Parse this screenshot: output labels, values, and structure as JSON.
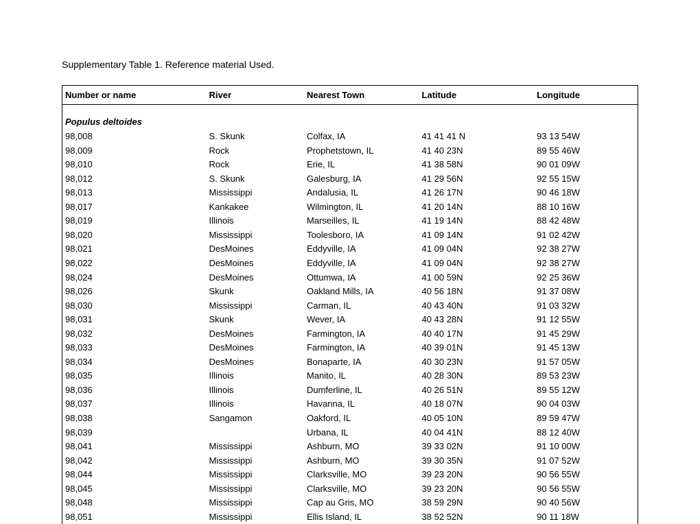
{
  "title": "Supplementary Table 1. Reference material Used.",
  "columns": [
    "Number or name",
    "River",
    "Nearest Town",
    "Latitude",
    "Longitude"
  ],
  "species": "Populus deltoides",
  "rows": [
    [
      "98,008",
      "S. Skunk",
      "Colfax, IA",
      "41 41 41 N",
      "93 13 54W"
    ],
    [
      "98,009",
      "Rock",
      "Prophetstown, IL",
      "41 40 23N",
      "89 55 46W"
    ],
    [
      "98,010",
      "Rock",
      "Erie, IL",
      "41 38 58N",
      "90 01 09W"
    ],
    [
      "98,012",
      "S. Skunk",
      "Galesburg, IA",
      "41 29 56N",
      "92 55 15W"
    ],
    [
      "98,013",
      "Mississippi",
      "Andalusia, IL",
      "41 26 17N",
      "90 46 18W"
    ],
    [
      "98,017",
      "Kankakee",
      "Wilmington, IL",
      "41 20 14N",
      "88 10 16W"
    ],
    [
      "98,019",
      "Illinois",
      "Marseilles, IL",
      "41 19 14N",
      "88 42 48W"
    ],
    [
      "98,020",
      "Mississippi",
      "Toolesboro, IA",
      "41 09 14N",
      "91 02 42W"
    ],
    [
      "98,021",
      "DesMoines",
      "Eddyville, IA",
      "41 09 04N",
      "92 38 27W"
    ],
    [
      "98,022",
      "DesMoines",
      "Eddyville, IA",
      "41 09 04N",
      "92 38 27W"
    ],
    [
      "98,024",
      "DesMoines",
      "Ottumwa, IA",
      "41 00 59N",
      "92 25 36W"
    ],
    [
      "98,026",
      "Skunk",
      "Oakland Mills, IA",
      "40 56 18N",
      "91 37 08W"
    ],
    [
      "98,030",
      "Mississippi",
      "Carman, IL",
      "40 43 40N",
      "91 03 32W"
    ],
    [
      "98,031",
      "Skunk",
      "Wever, IA",
      "40 43 28N",
      "91 12 55W"
    ],
    [
      "98,032",
      "DesMoines",
      "Farmington, IA",
      "40 40 17N",
      "91 45 29W"
    ],
    [
      "98,033",
      "DesMoines",
      "Farmington, IA",
      "40 39 01N",
      "91 45 13W"
    ],
    [
      "98,034",
      "DesMoines",
      "Bonaparte, IA",
      "40 30 23N",
      "91 57 05W"
    ],
    [
      "98,035",
      "Illinois",
      "Manito, IL",
      "40 28 30N",
      "89 53 23W"
    ],
    [
      "98,036",
      "Illinois",
      "Dumferline, IL",
      "40 26 51N",
      "89 55 12W"
    ],
    [
      "98,037",
      "Illinois",
      "Havanna, IL",
      "40 18 07N",
      "90 04 03W"
    ],
    [
      "98,038",
      "Sangamon",
      "Oakford, IL",
      "40 05 10N",
      "89 59 47W"
    ],
    [
      "98,039",
      "",
      "Urbana, IL",
      "40 04 41N",
      "88 12 40W"
    ],
    [
      "98,041",
      "Mississippi",
      "Ashburn, MO",
      "39 33 02N",
      "91 10 00W"
    ],
    [
      "98,042",
      "Mississippi",
      "Ashburn, MO",
      "39 30 35N",
      "91 07 52W"
    ],
    [
      "98,044",
      "Mississippi",
      "Clarksville, MO",
      "39 23 20N",
      "90 56 55W"
    ],
    [
      "98,045",
      "Mississippi",
      "Clarksville, MO",
      "39 23 20N",
      "90 56 55W"
    ],
    [
      "98,048",
      "Mississippi",
      "Cap au Gris, MO",
      "38 59 29N",
      "90 40 56W"
    ],
    [
      "98,051",
      "Mississippi",
      "Ellis Island, IL",
      "38 52 52N",
      "90 11 18W"
    ]
  ]
}
